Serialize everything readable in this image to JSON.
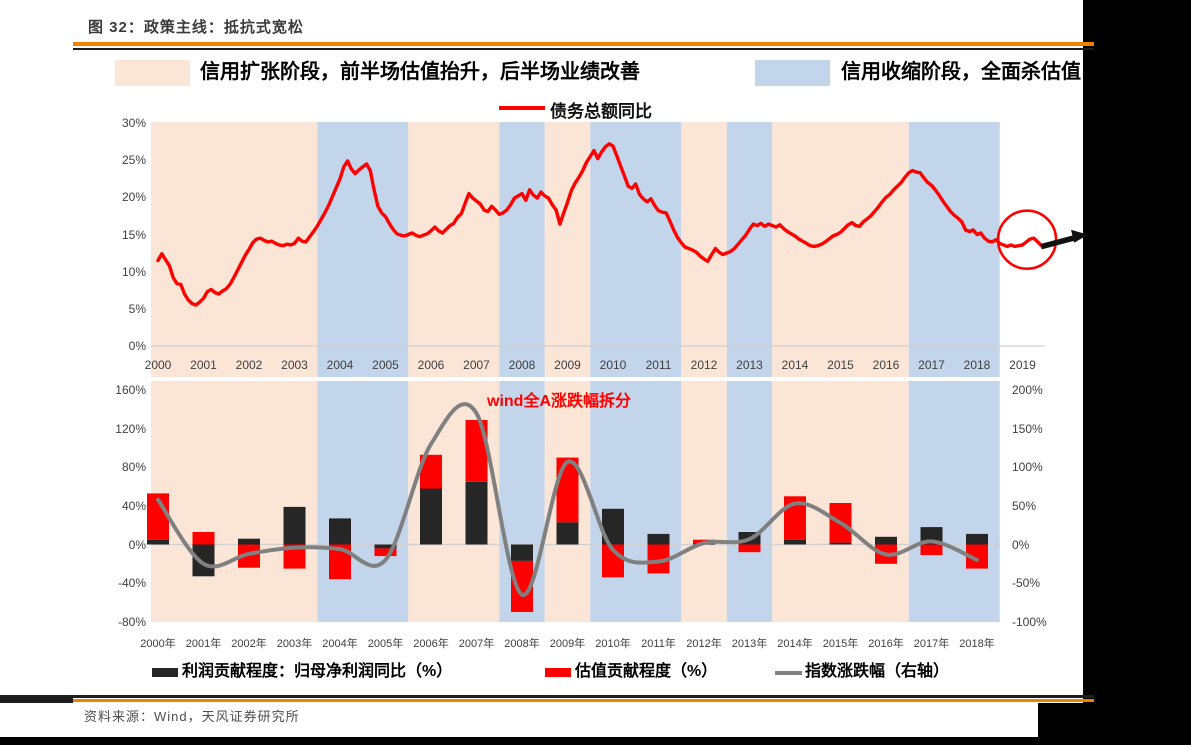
{
  "window": {
    "title": "图 32：政策主线：抵抗式宽松",
    "source": "资料来源：Wind，天风证券研究所"
  },
  "colors": {
    "expansion_band": "#FBE5D6",
    "contraction_band": "#C3D5EA",
    "debt_line_red": "#FF0000",
    "profit_bar_black": "#262626",
    "valuation_bar_red": "#FF0000",
    "index_line_gray": "#808080",
    "accent_orange": "#F18101",
    "annotation_red": "#FF0000"
  },
  "legend_top": {
    "expansion_label": "信用扩张阶段，前半场估值抬升，后半场业绩改善",
    "contraction_label": "信用收缩阶段，全面杀估值",
    "debt_line_label": "债务总额同比"
  },
  "chart_data": [
    {
      "type": "line",
      "title": "债务总额同比",
      "ylabel": "",
      "ylim": [
        0,
        30
      ],
      "y_ticks": [
        "30%",
        "25%",
        "20%",
        "15%",
        "10%",
        "5%",
        "0%"
      ],
      "x_ticks": [
        "2000",
        "2001",
        "2002",
        "2003",
        "2004",
        "2005",
        "2006",
        "2007",
        "2008",
        "2009",
        "2010",
        "2011",
        "2012",
        "2013",
        "2014",
        "2015",
        "2016",
        "2017",
        "2018",
        "2019"
      ],
      "bands": [
        [
          "expansion",
          2000,
          2004
        ],
        [
          "contraction",
          2004,
          2006
        ],
        [
          "expansion",
          2006,
          2008
        ],
        [
          "contraction",
          2008,
          2009
        ],
        [
          "expansion",
          2009,
          2010
        ],
        [
          "contraction",
          2010,
          2012
        ],
        [
          "expansion",
          2012,
          2013
        ],
        [
          "contraction",
          2013,
          2014
        ],
        [
          "expansion",
          2014,
          2017
        ],
        [
          "contraction",
          2017,
          2019
        ]
      ],
      "series": [
        {
          "name": "债务总额同比",
          "color": "#FF0000",
          "x_start": 2000,
          "x_step": 0.0833333,
          "values": [
            11.5,
            12.4,
            11.6,
            10.8,
            9.2,
            8.4,
            8.3,
            7.0,
            6.2,
            5.7,
            5.5,
            5.9,
            6.4,
            7.3,
            7.6,
            7.2,
            7.0,
            7.4,
            7.7,
            8.3,
            9.2,
            10.2,
            11.2,
            12.2,
            13.0,
            13.9,
            14.4,
            14.5,
            14.2,
            14.0,
            14.1,
            13.8,
            13.6,
            13.5,
            13.7,
            13.6,
            13.8,
            14.5,
            14.1,
            14.0,
            14.7,
            15.4,
            16.1,
            17.0,
            17.9,
            18.9,
            20.1,
            21.3,
            22.5,
            24.1,
            24.9,
            23.8,
            23.2,
            23.7,
            24.1,
            24.5,
            23.6,
            21.0,
            18.8,
            17.9,
            17.4,
            16.5,
            15.7,
            15.1,
            14.9,
            14.8,
            15.0,
            15.2,
            14.9,
            14.7,
            14.9,
            15.1,
            15.5,
            16.0,
            15.5,
            15.2,
            15.7,
            16.2,
            16.5,
            17.3,
            17.8,
            19.2,
            20.5,
            19.9,
            19.5,
            19.1,
            18.3,
            18.1,
            18.8,
            18.3,
            17.7,
            17.9,
            18.3,
            19.0,
            19.9,
            20.2,
            20.5,
            19.6,
            21.0,
            20.3,
            19.9,
            20.7,
            20.2,
            19.9,
            19.0,
            18.3,
            16.4,
            17.9,
            19.3,
            20.9,
            21.9,
            22.7,
            23.6,
            24.7,
            25.5,
            26.3,
            25.2,
            26.1,
            26.8,
            27.2,
            26.9,
            25.6,
            24.2,
            22.9,
            21.5,
            21.2,
            21.8,
            20.4,
            19.8,
            19.4,
            19.8,
            18.9,
            18.2,
            18.0,
            17.9,
            16.8,
            15.6,
            14.6,
            13.9,
            13.3,
            13.1,
            12.9,
            12.6,
            12.1,
            11.7,
            11.4,
            12.3,
            13.1,
            12.6,
            12.3,
            12.5,
            12.7,
            13.1,
            13.7,
            14.3,
            14.9,
            15.7,
            16.4,
            16.2,
            16.5,
            16.1,
            16.4,
            16.2,
            16.0,
            16.3,
            15.8,
            15.4,
            15.1,
            14.8,
            14.4,
            14.1,
            13.8,
            13.5,
            13.4,
            13.5,
            13.7,
            14.0,
            14.4,
            14.8,
            15.0,
            15.3,
            15.8,
            16.3,
            16.6,
            16.2,
            16.1,
            16.7,
            17.1,
            17.5,
            18.1,
            18.7,
            19.4,
            20.0,
            20.4,
            21.0,
            21.5,
            22.0,
            22.7,
            23.3,
            23.6,
            23.4,
            23.3,
            22.6,
            22.0,
            21.6,
            21.0,
            20.3,
            19.5,
            18.8,
            18.1,
            17.6,
            17.2,
            16.7,
            15.6,
            15.4,
            15.6,
            15.0,
            15.2,
            14.5,
            14.1,
            14.0,
            14.3,
            13.8,
            13.6,
            13.4,
            13.6,
            13.4,
            13.5,
            13.6,
            14.0,
            14.4,
            14.5,
            14.0,
            13.5
          ]
        }
      ],
      "annotation": {
        "shape": "red circle around 2019 line end with black right arrow",
        "circle_year": 2019.1,
        "circle_value": 14.3
      }
    },
    {
      "type": "bar",
      "title": "wind全A涨跌幅拆分",
      "categories": [
        "2000年",
        "2001年",
        "2002年",
        "2003年",
        "2004年",
        "2005年",
        "2006年",
        "2007年",
        "2008年",
        "2009年",
        "2010年",
        "2011年",
        "2012年",
        "2013年",
        "2014年",
        "2015年",
        "2016年",
        "2017年",
        "2018年"
      ],
      "left_axis": {
        "ticks": [
          "160%",
          "120%",
          "80%",
          "40%",
          "0%",
          "-40%",
          "-80%"
        ],
        "lim": [
          -80,
          160
        ]
      },
      "right_axis": {
        "ticks": [
          "200%",
          "150%",
          "100%",
          "50%",
          "0%",
          "-50%",
          "-100%"
        ],
        "lim": [
          -100,
          200
        ]
      },
      "series": [
        {
          "name": "利润贡献程度：归母净利润同比（%）",
          "type": "bar",
          "axis": "left",
          "color": "#262626",
          "values": [
            5,
            -33,
            6,
            39,
            27,
            -4,
            58,
            65,
            -17,
            23,
            37,
            11,
            1,
            13,
            5,
            2,
            8,
            18,
            11
          ]
        },
        {
          "name": "估值贡献程度（%）",
          "type": "bar",
          "axis": "left",
          "color": "#FF0000",
          "values": [
            48,
            13,
            -24,
            -25,
            -36,
            -8,
            35,
            64,
            -53,
            67,
            -34,
            -30,
            4,
            -8,
            45,
            41,
            -20,
            -11,
            -25
          ]
        },
        {
          "name": "指数涨跌幅（右轴）",
          "type": "line",
          "axis": "right",
          "color": "#808080",
          "values": [
            58,
            -25,
            -12,
            -4,
            -6,
            -20,
            130,
            170,
            -65,
            107,
            -7,
            -22,
            2,
            7,
            53,
            28,
            -13,
            4,
            -20
          ]
        }
      ],
      "legend_position": "bottom"
    }
  ]
}
